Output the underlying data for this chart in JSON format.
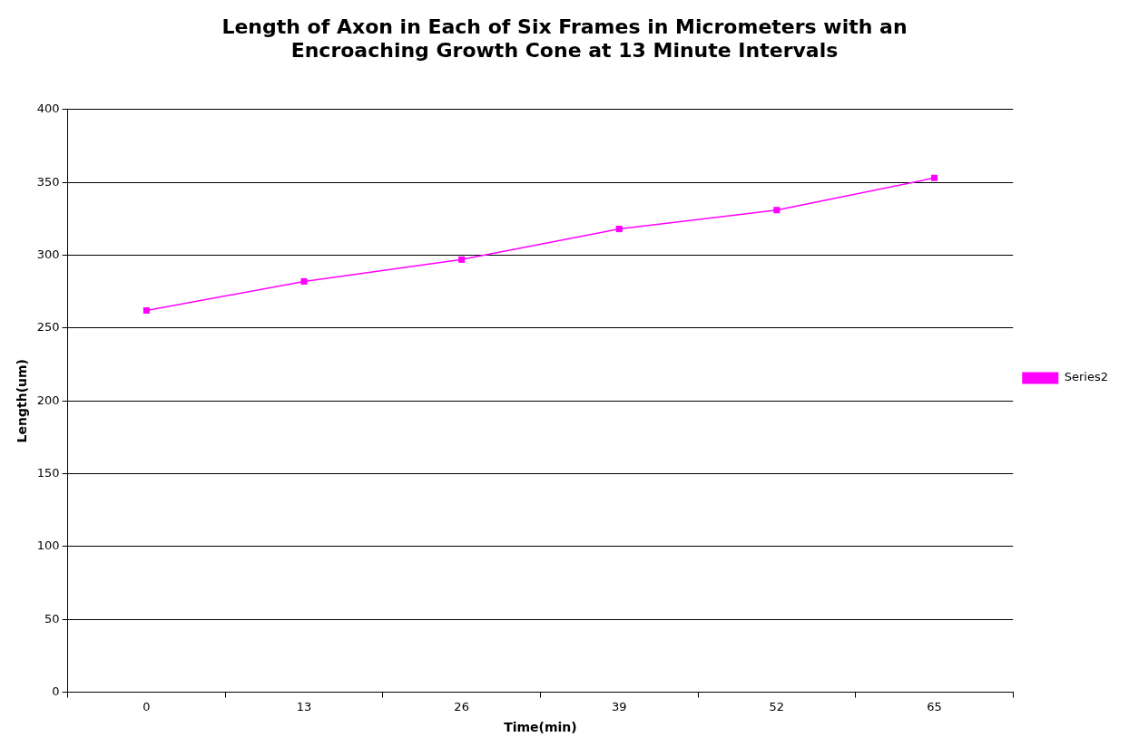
{
  "chart_data": {
    "type": "line",
    "title": "Length of Axon in Each of Six Frames in Micrometers with an Encroaching Growth Cone at 13 Minute Intervals",
    "xlabel": "Time(min)",
    "ylabel": "Length(um)",
    "categories": [
      "0",
      "13",
      "26",
      "39",
      "52",
      "65"
    ],
    "series": [
      {
        "name": "Series2",
        "color": "#ff00ff",
        "values": [
          262,
          282,
          297,
          318,
          331,
          353
        ]
      }
    ],
    "ylim": [
      0,
      400
    ],
    "yticks": [
      0,
      50,
      100,
      150,
      200,
      250,
      300,
      350,
      400
    ],
    "grid": "y",
    "legend": "right",
    "marker": "square",
    "line_style": "solid"
  }
}
